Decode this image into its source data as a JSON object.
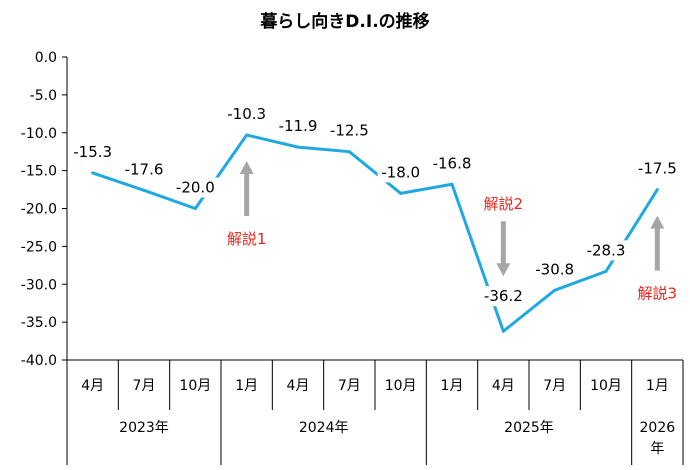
{
  "chart_data": {
    "type": "line",
    "title": "暮らし向きD.I.の推移",
    "ylim": [
      -40,
      0
    ],
    "yticks": [
      "0.0",
      "-5.0",
      "-10.0",
      "-15.0",
      "-20.0",
      "-25.0",
      "-30.0",
      "-35.0",
      "-40.0"
    ],
    "categories": [
      "4月",
      "7月",
      "10月",
      "1月",
      "4月",
      "7月",
      "10月",
      "1月",
      "4月",
      "7月",
      "10月",
      "1月"
    ],
    "groups": [
      {
        "label": "2023年",
        "count": 3
      },
      {
        "label": "2024年",
        "count": 4
      },
      {
        "label": "2025年",
        "count": 4
      },
      {
        "label_lines": [
          "2026",
          "年"
        ],
        "count": 1
      }
    ],
    "series": [
      {
        "values": [
          -15.3,
          -17.6,
          -20.0,
          -10.3,
          -11.9,
          -12.5,
          -18.0,
          -16.8,
          -36.2,
          -30.8,
          -28.3,
          -17.5
        ],
        "labels": [
          "-15.3",
          "-17.6",
          "-20.0",
          "-10.3",
          "-11.9",
          "-12.5",
          "-18.0",
          "-16.8",
          "-36.2",
          "-30.8",
          "-28.3",
          "-17.5"
        ],
        "color": "#1fa9e1"
      }
    ],
    "annotations": [
      {
        "text": "解説1",
        "index": 3,
        "direction": "up"
      },
      {
        "text": "解説2",
        "index": 8,
        "direction": "down"
      },
      {
        "text": "解説3",
        "index": 11,
        "direction": "up"
      }
    ],
    "colors": {
      "line": "#1fa9e1",
      "annotation_text": "#e8271c",
      "arrow": "#a6a6a6",
      "axis": "#000000"
    },
    "grid": false
  }
}
